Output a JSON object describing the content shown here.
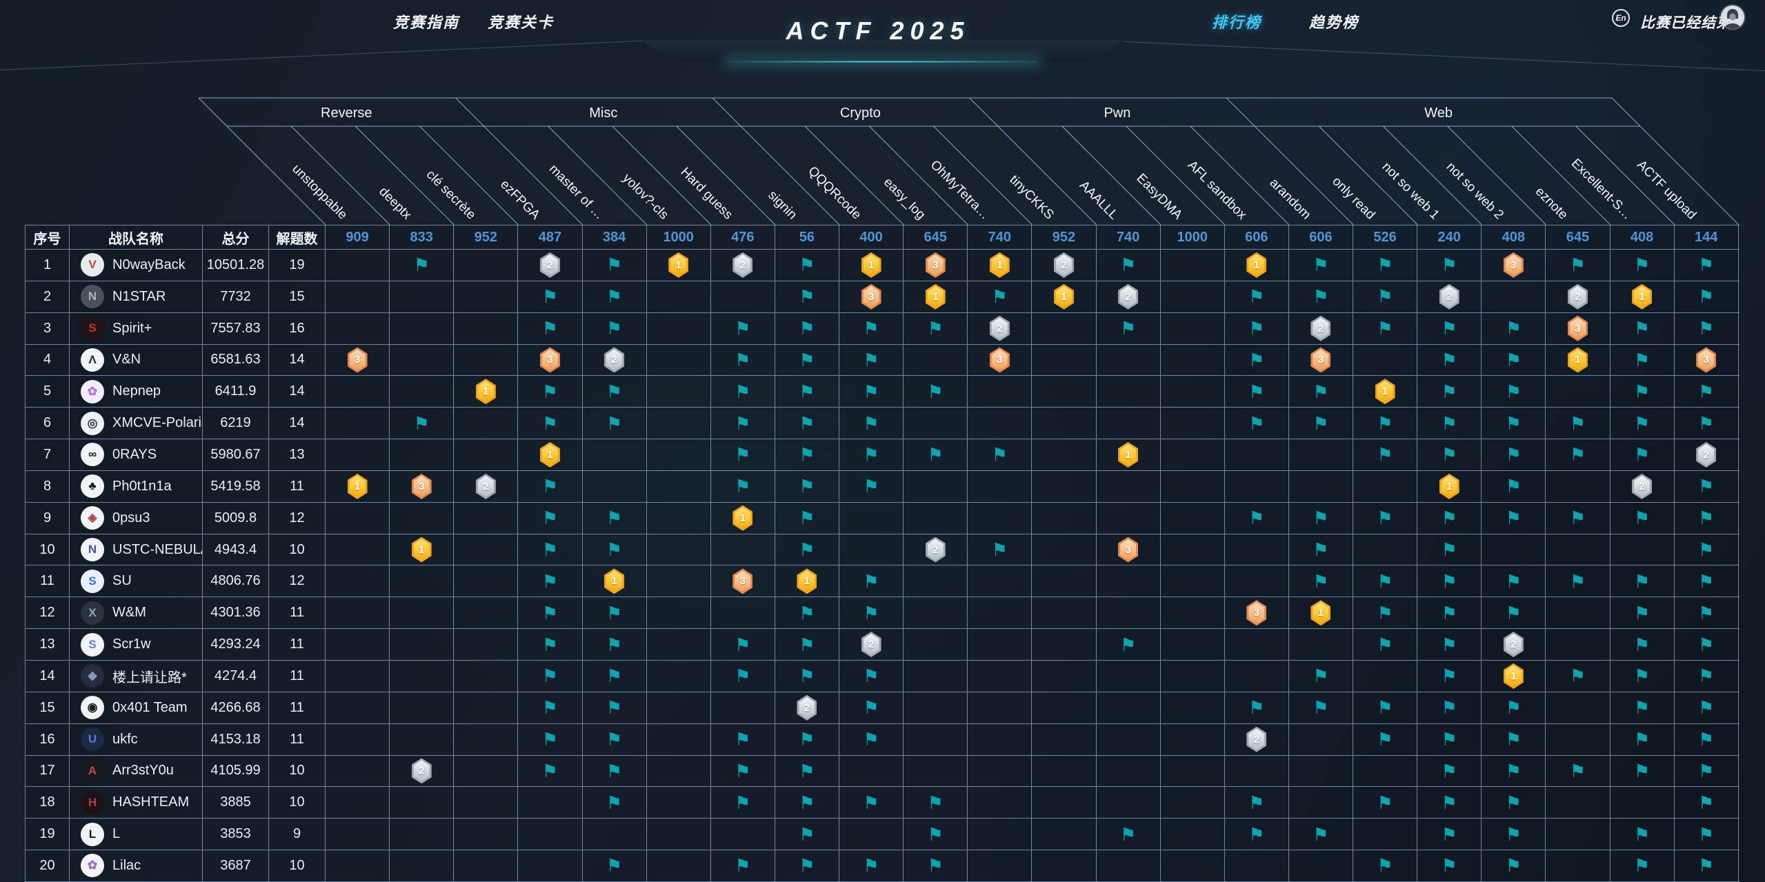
{
  "nav": {
    "guide_label": "竞赛指南",
    "levels_label": "竞赛关卡",
    "title": "ACTF 2025",
    "ranking_label": "排行榜",
    "trend_label": "趋势榜",
    "lang_label": "En",
    "status_label": "比赛已经结束"
  },
  "colors": {
    "accent": "#3fc8f5",
    "points_blue": "#5095d6",
    "flag_teal": "#0da4ad",
    "gold": "#f5c022",
    "silver": "#ccd4da",
    "bronze": "#f5ab73",
    "grid_line": "#abcaee"
  },
  "icons": {
    "flag_glyph": "⚑",
    "legend": {
      "F": "solved-flag",
      "1": "first-blood-gold",
      "2": "second-blood-silver",
      "3": "third-blood-bronze"
    }
  },
  "table": {
    "rank_header": "序号",
    "team_header": "战队名称",
    "score_header": "总分",
    "solved_header": "解题数",
    "categories": [
      {
        "name": "Reverse",
        "span": 4
      },
      {
        "name": "Misc",
        "span": 4
      },
      {
        "name": "Crypto",
        "span": 4
      },
      {
        "name": "Pwn",
        "span": 4
      },
      {
        "name": "Web",
        "span": 6
      }
    ],
    "challenges": [
      {
        "name": "unstoppable",
        "points": 909
      },
      {
        "name": "deeptx",
        "points": 833
      },
      {
        "name": "clé secrète",
        "points": 952
      },
      {
        "name": "ezFPGA",
        "points": 487
      },
      {
        "name": "master of …",
        "points": 384
      },
      {
        "name": "yolov?-cls",
        "points": 1000
      },
      {
        "name": "Hard guess",
        "points": 476
      },
      {
        "name": "signin",
        "points": 56
      },
      {
        "name": "QQQRcode",
        "points": 400
      },
      {
        "name": "easy_log",
        "points": 645
      },
      {
        "name": "OhMyTetra…",
        "points": 740
      },
      {
        "name": "tinyCKKS",
        "points": 952
      },
      {
        "name": "AAALLL",
        "points": 740
      },
      {
        "name": "EasyDMA",
        "points": 1000
      },
      {
        "name": "AFL sandbox",
        "points": 606
      },
      {
        "name": "arandom",
        "points": 606
      },
      {
        "name": "only read",
        "points": 526
      },
      {
        "name": "not so web 1",
        "points": 240
      },
      {
        "name": "not so web 2",
        "points": 408
      },
      {
        "name": "eznote",
        "points": 645
      },
      {
        "name": "Excellent-S…",
        "points": 408
      },
      {
        "name": "ACTF upload",
        "points": 144
      }
    ],
    "teams": [
      {
        "rank": 1,
        "name": "N0wayBack",
        "score": "10501.28",
        "solved": 19,
        "logo": {
          "bg": "#e7ebee",
          "fg": "#c24545",
          "glyph": "V"
        },
        "cells": [
          "",
          "F",
          "",
          "2",
          "F",
          "1",
          "2",
          "F",
          "1",
          "3",
          "1",
          "2",
          "F",
          "",
          "1",
          "F",
          "F",
          "F",
          "3",
          "F",
          "F",
          "F"
        ]
      },
      {
        "rank": 2,
        "name": "N1STAR",
        "score": "7732",
        "solved": 15,
        "logo": {
          "bg": "#49525e",
          "fg": "#a9b3bf",
          "glyph": "N"
        },
        "cells": [
          "",
          "",
          "",
          "F",
          "F",
          "",
          "",
          "F",
          "3",
          "1",
          "F",
          "1",
          "2",
          "",
          "F",
          "F",
          "F",
          "2",
          "",
          "2",
          "1",
          "F"
        ]
      },
      {
        "rank": 3,
        "name": "Spirit+",
        "score": "7557.83",
        "solved": 16,
        "logo": {
          "bg": "#221317",
          "fg": "#c0392b",
          "glyph": "S"
        },
        "cells": [
          "",
          "",
          "",
          "F",
          "F",
          "",
          "F",
          "F",
          "F",
          "F",
          "2",
          "",
          "F",
          "",
          "F",
          "2",
          "F",
          "F",
          "F",
          "3",
          "F",
          "F"
        ]
      },
      {
        "rank": 4,
        "name": "V&N",
        "score": "6581.63",
        "solved": 14,
        "logo": {
          "bg": "#f1f3f5",
          "fg": "#23282f",
          "glyph": "Λ"
        },
        "cells": [
          "3",
          "",
          "",
          "3",
          "2",
          "",
          "F",
          "F",
          "F",
          "",
          "3",
          "",
          "",
          "",
          "F",
          "3",
          "",
          "F",
          "F",
          "1",
          "F",
          "3"
        ]
      },
      {
        "rank": 5,
        "name": "Nepnep",
        "score": "6411.9",
        "solved": 14,
        "logo": {
          "bg": "#f4eefa",
          "fg": "#b07cd8",
          "glyph": "✿"
        },
        "cells": [
          "",
          "",
          "1",
          "F",
          "F",
          "",
          "F",
          "F",
          "F",
          "F",
          "",
          "",
          "",
          "",
          "F",
          "F",
          "1",
          "F",
          "F",
          "",
          "F",
          "F"
        ]
      },
      {
        "rank": 6,
        "name": "XMCVE-Polaris",
        "score": "6219",
        "solved": 14,
        "logo": {
          "bg": "#eef2f5",
          "fg": "#2c3744",
          "glyph": "◎"
        },
        "cells": [
          "",
          "F",
          "",
          "F",
          "F",
          "",
          "F",
          "F",
          "F",
          "",
          "",
          "",
          "",
          "",
          "F",
          "F",
          "F",
          "F",
          "F",
          "F",
          "F",
          "F"
        ]
      },
      {
        "rank": 7,
        "name": "0RAYS",
        "score": "5980.67",
        "solved": 13,
        "logo": {
          "bg": "#f1f3f5",
          "fg": "#16191e",
          "glyph": "∞"
        },
        "cells": [
          "",
          "",
          "",
          "1",
          "",
          "",
          "F",
          "F",
          "F",
          "F",
          "F",
          "",
          "1",
          "",
          "",
          "",
          "F",
          "F",
          "F",
          "F",
          "F",
          "2"
        ]
      },
      {
        "rank": 8,
        "name": "Ph0t1n1a",
        "score": "5419.58",
        "solved": 11,
        "logo": {
          "bg": "#f1f3f5",
          "fg": "#16191e",
          "glyph": "♣"
        },
        "cells": [
          "1",
          "3",
          "2",
          "F",
          "",
          "",
          "F",
          "F",
          "F",
          "",
          "",
          "",
          "",
          "",
          "",
          "",
          "",
          "1",
          "F",
          "",
          "2",
          "F"
        ]
      },
      {
        "rank": 9,
        "name": "0psu3",
        "score": "5009.8",
        "solved": 12,
        "logo": {
          "bg": "#f1f3f5",
          "fg": "#b24343",
          "glyph": "◈"
        },
        "cells": [
          "",
          "",
          "",
          "F",
          "F",
          "",
          "1",
          "F",
          "",
          "",
          "",
          "",
          "",
          "",
          "F",
          "F",
          "F",
          "F",
          "F",
          "F",
          "F",
          "F"
        ]
      },
      {
        "rank": 10,
        "name": "USTC-NEBULA",
        "score": "4943.4",
        "solved": 10,
        "logo": {
          "bg": "#f1f3f5",
          "fg": "#3c5a9e",
          "glyph": "N"
        },
        "cells": [
          "",
          "1",
          "",
          "F",
          "F",
          "",
          "",
          "F",
          "",
          "2",
          "F",
          "",
          "3",
          "",
          "",
          "F",
          "",
          "F",
          "",
          "",
          "",
          "F"
        ]
      },
      {
        "rank": 11,
        "name": "SU",
        "score": "4806.76",
        "solved": 12,
        "logo": {
          "bg": "#e9f0fa",
          "fg": "#3570cc",
          "glyph": "S"
        },
        "cells": [
          "",
          "",
          "",
          "F",
          "1",
          "",
          "3",
          "1",
          "F",
          "",
          "",
          "",
          "",
          "",
          "",
          "F",
          "F",
          "F",
          "F",
          "F",
          "F",
          "F"
        ]
      },
      {
        "rank": 12,
        "name": "W&M",
        "score": "4301.36",
        "solved": 11,
        "logo": {
          "bg": "#2b3340",
          "fg": "#93a5bb",
          "glyph": "X"
        },
        "cells": [
          "",
          "",
          "",
          "F",
          "F",
          "",
          "",
          "F",
          "F",
          "",
          "",
          "",
          "",
          "",
          "3",
          "1",
          "F",
          "F",
          "F",
          "",
          "F",
          "F"
        ]
      },
      {
        "rank": 13,
        "name": "Scr1w",
        "score": "4293.24",
        "solved": 11,
        "logo": {
          "bg": "#f1f3f5",
          "fg": "#6d7ad8",
          "glyph": "S"
        },
        "cells": [
          "",
          "",
          "",
          "F",
          "F",
          "",
          "F",
          "F",
          "2",
          "",
          "",
          "",
          "F",
          "",
          "",
          "",
          "F",
          "F",
          "2",
          "",
          "F",
          "F"
        ]
      },
      {
        "rank": 14,
        "name": "楼上请让路*",
        "score": "4274.4",
        "solved": 11,
        "logo": {
          "bg": "#252e41",
          "fg": "#8b97b8",
          "glyph": "◆"
        },
        "cells": [
          "",
          "",
          "",
          "F",
          "F",
          "",
          "F",
          "F",
          "F",
          "",
          "",
          "",
          "",
          "",
          "",
          "F",
          "",
          "F",
          "1",
          "F",
          "F",
          "F"
        ]
      },
      {
        "rank": 15,
        "name": "0x401 Team",
        "score": "4266.68",
        "solved": 11,
        "logo": {
          "bg": "#f1f3f5",
          "fg": "#1b1e24",
          "glyph": "◉"
        },
        "cells": [
          "",
          "",
          "",
          "F",
          "F",
          "",
          "",
          "2",
          "F",
          "",
          "",
          "",
          "",
          "",
          "F",
          "F",
          "F",
          "F",
          "F",
          "",
          "F",
          "F"
        ]
      },
      {
        "rank": 16,
        "name": "ukfc",
        "score": "4153.18",
        "solved": 11,
        "logo": {
          "bg": "#1c2a44",
          "fg": "#5580d8",
          "glyph": "U"
        },
        "cells": [
          "",
          "",
          "",
          "F",
          "F",
          "",
          "F",
          "F",
          "F",
          "",
          "",
          "",
          "",
          "",
          "2",
          "",
          "F",
          "F",
          "F",
          "",
          "F",
          "F"
        ]
      },
      {
        "rank": 17,
        "name": "Arr3stY0u",
        "score": "4105.99",
        "solved": 10,
        "logo": {
          "bg": "#17191e",
          "fg": "#c34848",
          "glyph": "A"
        },
        "cells": [
          "",
          "2",
          "",
          "F",
          "F",
          "",
          "F",
          "F",
          "",
          "",
          "",
          "",
          "",
          "",
          "",
          "",
          "",
          "F",
          "F",
          "F",
          "F",
          "F"
        ]
      },
      {
        "rank": 18,
        "name": "HASHTEAM",
        "score": "3885",
        "solved": 10,
        "logo": {
          "bg": "#1c1216",
          "fg": "#b23a46",
          "glyph": "H"
        },
        "cells": [
          "",
          "",
          "",
          "",
          "F",
          "",
          "F",
          "F",
          "F",
          "F",
          "",
          "",
          "",
          "",
          "F",
          "",
          "F",
          "F",
          "F",
          "",
          "",
          "F"
        ]
      },
      {
        "rank": 19,
        "name": "L",
        "score": "3853",
        "solved": 9,
        "logo": {
          "bg": "#f1f3f5",
          "fg": "#16191e",
          "glyph": "L"
        },
        "cells": [
          "",
          "",
          "",
          "",
          "",
          "",
          "",
          "F",
          "",
          "F",
          "",
          "",
          "F",
          "",
          "F",
          "F",
          "",
          "F",
          "F",
          "",
          "F",
          "F"
        ]
      },
      {
        "rank": 20,
        "name": "Lilac",
        "score": "3687",
        "solved": 10,
        "logo": {
          "bg": "#f7f2fa",
          "fg": "#9d6cc4",
          "glyph": "✿"
        },
        "cells": [
          "",
          "",
          "",
          "",
          "F",
          "",
          "F",
          "F",
          "F",
          "F",
          "",
          "",
          "",
          "",
          "",
          "",
          "F",
          "F",
          "F",
          "",
          "F",
          "F"
        ]
      }
    ]
  }
}
